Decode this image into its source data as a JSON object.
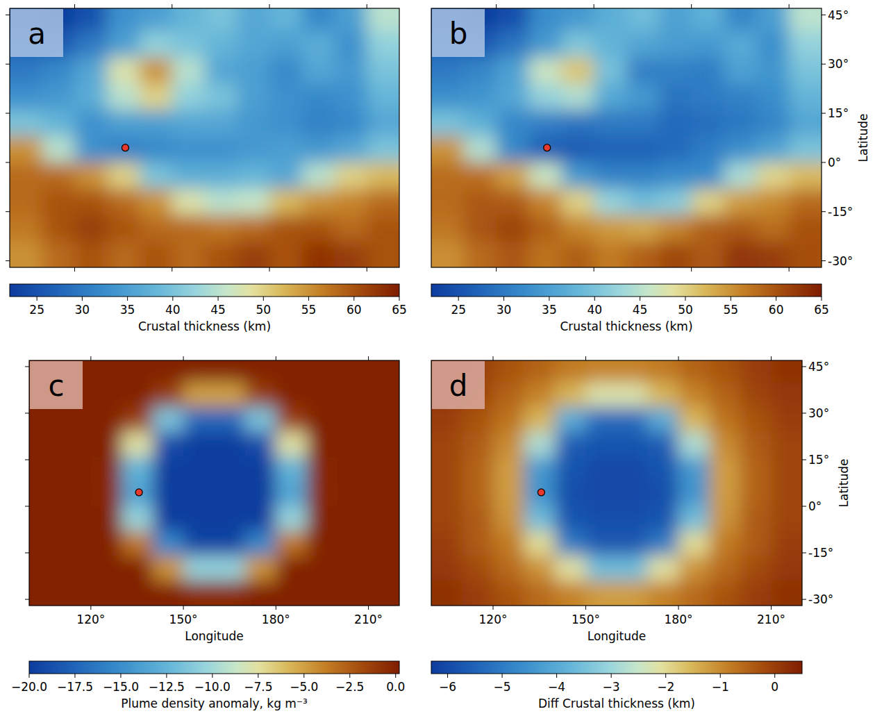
{
  "chart_data": [
    {
      "type": "heatmap",
      "title": "a",
      "x": [
        105,
        115,
        125,
        135,
        145,
        155,
        165,
        175,
        185,
        195,
        205,
        215
      ],
      "y": [
        44,
        36,
        28,
        20,
        12,
        4,
        -4,
        -12,
        -20,
        -28
      ],
      "values": [
        [
          24,
          22,
          25,
          33,
          35,
          38,
          40,
          36,
          38,
          32,
          35,
          45
        ],
        [
          27,
          26,
          30,
          35,
          42,
          40,
          38,
          36,
          35,
          37,
          33,
          42
        ],
        [
          30,
          32,
          36,
          48,
          55,
          45,
          36,
          35,
          32,
          36,
          34,
          40
        ],
        [
          33,
          34,
          37,
          45,
          50,
          42,
          40,
          35,
          33,
          32,
          33,
          38
        ],
        [
          40,
          38,
          33,
          35,
          35,
          36,
          36,
          34,
          33,
          31,
          32,
          36
        ],
        [
          55,
          45,
          33,
          31,
          32,
          33,
          33,
          34,
          35,
          34,
          36,
          40
        ],
        [
          58,
          58,
          55,
          50,
          40,
          37,
          37,
          38,
          36,
          45,
          50,
          52
        ],
        [
          58,
          60,
          60,
          58,
          55,
          48,
          45,
          46,
          52,
          55,
          56,
          58
        ],
        [
          57,
          60,
          62,
          60,
          58,
          58,
          57,
          58,
          60,
          60,
          58,
          60
        ],
        [
          55,
          58,
          60,
          58,
          60,
          58,
          60,
          62,
          60,
          63,
          62,
          60
        ]
      ],
      "xlim": [
        100,
        220
      ],
      "ylim": [
        -32,
        47
      ],
      "xticks": [
        {
          "value": 120,
          "label": "120°"
        },
        {
          "value": 150,
          "label": "150°"
        },
        {
          "value": 180,
          "label": "180°"
        },
        {
          "value": 210,
          "label": "210°"
        }
      ],
      "yticks": [
        {
          "value": -30,
          "label": "-30°"
        },
        {
          "value": -15,
          "label": "-15°"
        },
        {
          "value": 0,
          "label": "0°"
        },
        {
          "value": 15,
          "label": "15°"
        },
        {
          "value": 30,
          "label": "30°"
        },
        {
          "value": 45,
          "label": "45°"
        }
      ],
      "tick_labels": false,
      "points": {
        "x": [
          135.6
        ],
        "y": [
          4.5
        ]
      },
      "colorbar": {
        "range": [
          22,
          65
        ],
        "ticks": [
          25,
          30,
          35,
          40,
          45,
          50,
          55,
          60,
          65
        ],
        "label": "Crustal thickness (km)"
      }
    },
    {
      "type": "heatmap",
      "title": "b",
      "x": [
        105,
        115,
        125,
        135,
        145,
        155,
        165,
        175,
        185,
        195,
        205,
        215
      ],
      "y": [
        44,
        36,
        28,
        20,
        12,
        4,
        -4,
        -12,
        -20,
        -28
      ],
      "values": [
        [
          24.2,
          22,
          24.7,
          32.5,
          34.2,
          37.1,
          39.1,
          35.2,
          37.5,
          31.7,
          35,
          45.2
        ],
        [
          27.1,
          25.9,
          29.5,
          34.1,
          40.5,
          37.8,
          35.8,
          34.5,
          34.1,
          36.5,
          32.9,
          42.1
        ],
        [
          30,
          31.7,
          35.3,
          46.5,
          51,
          39.7,
          30.7,
          31,
          30.5,
          35.3,
          33.7,
          40
        ],
        [
          32.9,
          33.6,
          36,
          42.2,
          44.4,
          36.2,
          34.2,
          29.4,
          30.2,
          31,
          32.6,
          37.9
        ],
        [
          39.9,
          37.5,
          31.8,
          30.6,
          29.2,
          30,
          30,
          28.2,
          28.6,
          29.8,
          31.5,
          35.9
        ],
        [
          54.9,
          44.5,
          31.8,
          26.5,
          26.1,
          27,
          27,
          28.1,
          30.5,
          32.8,
          35.5,
          39.9
        ],
        [
          57.9,
          57.6,
          53.9,
          46.4,
          34.2,
          31.1,
          31.1,
          32.2,
          32.4,
          43.9,
          49.6,
          51.9
        ],
        [
          58,
          59.6,
          59.2,
          56,
          50,
          42.3,
          39.3,
          41,
          50,
          54.2,
          55.6,
          58
        ],
        [
          57.1,
          59.8,
          61.4,
          58.9,
          55.9,
          54.4,
          53.4,
          55.9,
          58.9,
          59.4,
          57.8,
          60.1
        ],
        [
          55.2,
          58,
          59.7,
          57.4,
          59.1,
          56.8,
          58.8,
          61.1,
          59.4,
          62.7,
          62,
          60.2
        ]
      ],
      "xlim": [
        100,
        220
      ],
      "ylim": [
        -32,
        47
      ],
      "xticks": [
        {
          "value": 120,
          "label": "120°"
        },
        {
          "value": 150,
          "label": "150°"
        },
        {
          "value": 180,
          "label": "180°"
        },
        {
          "value": 210,
          "label": "210°"
        }
      ],
      "yticks": [
        {
          "value": -30,
          "label": "-30°"
        },
        {
          "value": -15,
          "label": "-15°"
        },
        {
          "value": 0,
          "label": "0°"
        },
        {
          "value": 15,
          "label": "15°"
        },
        {
          "value": 30,
          "label": "30°"
        },
        {
          "value": 45,
          "label": "45°"
        }
      ],
      "tick_labels": "y",
      "ylabel": "Latitude",
      "points": {
        "x": [
          135.6
        ],
        "y": [
          4.5
        ]
      },
      "colorbar": {
        "range": [
          22,
          65
        ],
        "ticks": [
          25,
          30,
          35,
          40,
          45,
          50,
          55,
          60,
          65
        ],
        "label": "Crustal thickness (km)"
      }
    },
    {
      "type": "heatmap",
      "title": "c",
      "x": [
        105,
        115,
        125,
        135,
        145,
        155,
        165,
        175,
        185,
        195,
        205,
        215
      ],
      "y": [
        44,
        36,
        28,
        20,
        12,
        4,
        -4,
        -12,
        -20,
        -28
      ],
      "values": [
        [
          0,
          0,
          0,
          0,
          0,
          0,
          0,
          0,
          0,
          0,
          0,
          0
        ],
        [
          0,
          0,
          0,
          0,
          -1.2,
          -5,
          -5,
          -1.2,
          0,
          0,
          0,
          0
        ],
        [
          0,
          0,
          0,
          -1.3,
          -11.5,
          -17.3,
          -17.3,
          -11.5,
          -1.3,
          0,
          0,
          0
        ],
        [
          0,
          0,
          0,
          -7.6,
          -18.9,
          -20,
          -20,
          -18.9,
          -7.6,
          0,
          0,
          0
        ],
        [
          0,
          0,
          -0.2,
          -12.6,
          -20,
          -20,
          -20,
          -20,
          -12.6,
          -0.2,
          0,
          0
        ],
        [
          0,
          0,
          -0.3,
          -13.6,
          -20,
          -20,
          -20,
          -20,
          -13.6,
          -0.3,
          0,
          0
        ],
        [
          0,
          0,
          0,
          -10.4,
          -20,
          -20,
          -20,
          -20,
          -10.4,
          0,
          0,
          0
        ],
        [
          0,
          0,
          0,
          -3.5,
          -15.4,
          -19.5,
          -19.5,
          -15.4,
          -3.5,
          0,
          0,
          0
        ],
        [
          0,
          0,
          0,
          0,
          -4.5,
          -10.5,
          -10.5,
          -4.5,
          0,
          0,
          0,
          0
        ],
        [
          0,
          0,
          0,
          0,
          0,
          -0.4,
          -0.4,
          0,
          0,
          0,
          0,
          0
        ]
      ],
      "xlim": [
        100,
        220
      ],
      "ylim": [
        -32,
        47
      ],
      "xticks": [
        {
          "value": 120,
          "label": "120°"
        },
        {
          "value": 150,
          "label": "150°"
        },
        {
          "value": 180,
          "label": "180°"
        },
        {
          "value": 210,
          "label": "210°"
        }
      ],
      "yticks": [
        {
          "value": -30,
          "label": "-30°"
        },
        {
          "value": -15,
          "label": "-15°"
        },
        {
          "value": 0,
          "label": "0°"
        },
        {
          "value": 15,
          "label": "15°"
        },
        {
          "value": 30,
          "label": "30°"
        },
        {
          "value": 45,
          "label": "45°"
        }
      ],
      "tick_labels": "x",
      "xlabel": "Longitude",
      "points": {
        "x": [
          135.6
        ],
        "y": [
          4.5
        ]
      },
      "colorbar": {
        "range": [
          -20,
          0.2
        ],
        "ticks": [
          {
            "value": -20,
            "label": "−20.0"
          },
          {
            "value": -17.5,
            "label": "−17.5"
          },
          {
            "value": -15,
            "label": "−15.0"
          },
          {
            "value": -12.5,
            "label": "−12.5"
          },
          {
            "value": -10,
            "label": "−10.0"
          },
          {
            "value": -7.5,
            "label": "−7.5"
          },
          {
            "value": -5,
            "label": "−5.0"
          },
          {
            "value": -2.5,
            "label": "−2.5"
          },
          {
            "value": 0,
            "label": "0.0"
          }
        ],
        "label": "Plume density anomaly, kg m⁻³"
      }
    },
    {
      "type": "heatmap",
      "title": "d",
      "x": [
        105,
        115,
        125,
        135,
        145,
        155,
        165,
        175,
        185,
        195,
        205,
        215
      ],
      "y": [
        44,
        36,
        28,
        20,
        12,
        4,
        -4,
        -12,
        -20,
        -28
      ],
      "values": [
        [
          0.2,
          0,
          -0.3,
          -0.5,
          -0.8,
          -0.9,
          -0.9,
          -0.8,
          -0.5,
          -0.3,
          0,
          0.2
        ],
        [
          0.1,
          -0.1,
          -0.5,
          -0.9,
          -1.5,
          -2.2,
          -2.2,
          -1.5,
          -0.9,
          -0.5,
          -0.1,
          0.1
        ],
        [
          0,
          -0.3,
          -0.7,
          -1.5,
          -4,
          -5.3,
          -5.3,
          -4,
          -1.5,
          -0.7,
          -0.3,
          0
        ],
        [
          -0.1,
          -0.4,
          -1,
          -2.8,
          -5.6,
          -5.8,
          -5.8,
          -5.6,
          -2.8,
          -1,
          -0.4,
          -0.1
        ],
        [
          -0.1,
          -0.5,
          -1.2,
          -4.4,
          -5.8,
          -6,
          -6,
          -5.8,
          -4.4,
          -1.2,
          -0.5,
          -0.1
        ],
        [
          -0.1,
          -0.5,
          -1.2,
          -4.5,
          -5.9,
          -6,
          -6,
          -5.9,
          -4.5,
          -1.2,
          -0.5,
          -0.1
        ],
        [
          -0.1,
          -0.4,
          -1.1,
          -3.6,
          -5.8,
          -5.9,
          -5.9,
          -5.8,
          -3.6,
          -1.1,
          -0.4,
          -0.1
        ],
        [
          0,
          -0.4,
          -0.8,
          -2,
          -5,
          -5.7,
          -5.7,
          -5,
          -2,
          -0.8,
          -0.4,
          0
        ],
        [
          0.1,
          -0.2,
          -0.6,
          -1.1,
          -2.1,
          -3.6,
          -3.6,
          -2.1,
          -1.1,
          -0.6,
          -0.2,
          0.1
        ],
        [
          0.2,
          0,
          -0.3,
          -0.6,
          -0.9,
          -1.2,
          -1.2,
          -0.9,
          -0.6,
          -0.3,
          0,
          0.2
        ]
      ],
      "xlim": [
        100,
        220
      ],
      "ylim": [
        -32,
        47
      ],
      "xticks": [
        {
          "value": 120,
          "label": "120°"
        },
        {
          "value": 150,
          "label": "150°"
        },
        {
          "value": 180,
          "label": "180°"
        },
        {
          "value": 210,
          "label": "210°"
        }
      ],
      "yticks": [
        {
          "value": -30,
          "label": "-30°"
        },
        {
          "value": -15,
          "label": "-15°"
        },
        {
          "value": 0,
          "label": "0°"
        },
        {
          "value": 15,
          "label": "15°"
        },
        {
          "value": 30,
          "label": "30°"
        },
        {
          "value": 45,
          "label": "45°"
        }
      ],
      "tick_labels": true,
      "xlabel": "Longitude",
      "ylabel": "Latitude",
      "points": {
        "x": [
          135.6
        ],
        "y": [
          4.5
        ]
      },
      "colorbar": {
        "range": [
          -6.3,
          0.5
        ],
        "ticks": [
          {
            "value": -6,
            "label": "−6"
          },
          {
            "value": -5,
            "label": "−5"
          },
          {
            "value": -4,
            "label": "−4"
          },
          {
            "value": -3,
            "label": "−3"
          },
          {
            "value": -2,
            "label": "−2"
          },
          {
            "value": -1,
            "label": "−1"
          },
          0
        ],
        "label": "Diff Crustal thickness (km)"
      }
    }
  ]
}
